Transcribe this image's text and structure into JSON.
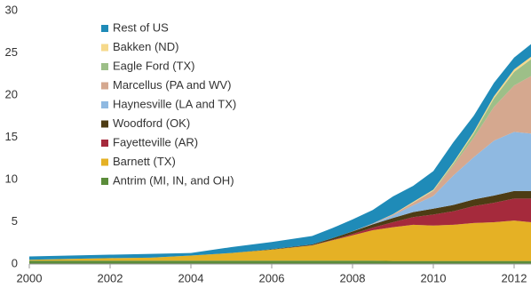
{
  "chart_data": {
    "type": "stacked-area",
    "x": [
      2000,
      2001,
      2002,
      2003,
      2004,
      2005,
      2006,
      2007,
      2007.5,
      2008,
      2008.5,
      2009,
      2009.5,
      2010,
      2010.5,
      2011,
      2011.5,
      2012,
      2012.42
    ],
    "xlim": [
      2000,
      2012.42
    ],
    "xticks": [
      2000,
      2002,
      2004,
      2006,
      2008,
      2010,
      2012
    ],
    "ylim": [
      0,
      30
    ],
    "yticks": [
      0,
      5,
      10,
      15,
      20,
      25,
      30
    ],
    "series": [
      {
        "name": "Antrim (MI, IN, and OH)",
        "color": "#5b8c3a",
        "values": [
          0.4,
          0.4,
          0.4,
          0.4,
          0.4,
          0.4,
          0.4,
          0.4,
          0.4,
          0.4,
          0.4,
          0.35,
          0.35,
          0.35,
          0.35,
          0.35,
          0.35,
          0.35,
          0.35
        ]
      },
      {
        "name": "Barnett (TX)",
        "color": "#e5b125",
        "values": [
          0.1,
          0.2,
          0.3,
          0.35,
          0.6,
          0.9,
          1.3,
          1.8,
          2.4,
          3.0,
          3.6,
          4.0,
          4.3,
          4.2,
          4.3,
          4.5,
          4.6,
          4.8,
          4.6
        ]
      },
      {
        "name": "Fayetteville (AR)",
        "color": "#a52a3c",
        "values": [
          0,
          0,
          0,
          0,
          0,
          0,
          0,
          0.02,
          0.05,
          0.15,
          0.3,
          0.6,
          0.9,
          1.3,
          1.6,
          2.0,
          2.3,
          2.6,
          2.8
        ]
      },
      {
        "name": "Woodford (OK)",
        "color": "#4d3c14",
        "values": [
          0,
          0,
          0,
          0,
          0,
          0,
          0.05,
          0.1,
          0.2,
          0.3,
          0.4,
          0.5,
          0.6,
          0.7,
          0.75,
          0.8,
          0.85,
          0.9,
          0.9
        ]
      },
      {
        "name": "Haynesville (LA and TX)",
        "color": "#8fb9e1",
        "values": [
          0,
          0,
          0,
          0,
          0,
          0,
          0,
          0,
          0,
          0,
          0.05,
          0.3,
          0.8,
          1.5,
          3.5,
          5.0,
          6.5,
          7.0,
          6.8
        ]
      },
      {
        "name": "Marcellus (PA and WV)",
        "color": "#d5a88f",
        "values": [
          0,
          0,
          0,
          0,
          0,
          0,
          0,
          0,
          0,
          0.02,
          0.05,
          0.1,
          0.3,
          0.6,
          1.2,
          2.3,
          4.0,
          5.5,
          6.8
        ]
      },
      {
        "name": "Eagle Ford (TX)",
        "color": "#9dbf88",
        "values": [
          0,
          0,
          0,
          0,
          0,
          0,
          0,
          0,
          0,
          0,
          0,
          0,
          0,
          0.05,
          0.2,
          0.5,
          1.0,
          1.6,
          2.0
        ]
      },
      {
        "name": "Bakken (ND)",
        "color": "#f6d98b",
        "values": [
          0,
          0,
          0,
          0,
          0,
          0,
          0,
          0,
          0,
          0,
          0,
          0.05,
          0.1,
          0.1,
          0.15,
          0.2,
          0.25,
          0.3,
          0.3
        ]
      },
      {
        "name": "Rest of US",
        "color": "#1f8bb8",
        "values": [
          0.4,
          0.4,
          0.4,
          0.45,
          0.3,
          0.7,
          0.85,
          1.0,
          1.2,
          1.4,
          1.6,
          2.1,
          1.9,
          2.2,
          2.4,
          1.9,
          1.6,
          1.4,
          1.5
        ]
      }
    ]
  }
}
